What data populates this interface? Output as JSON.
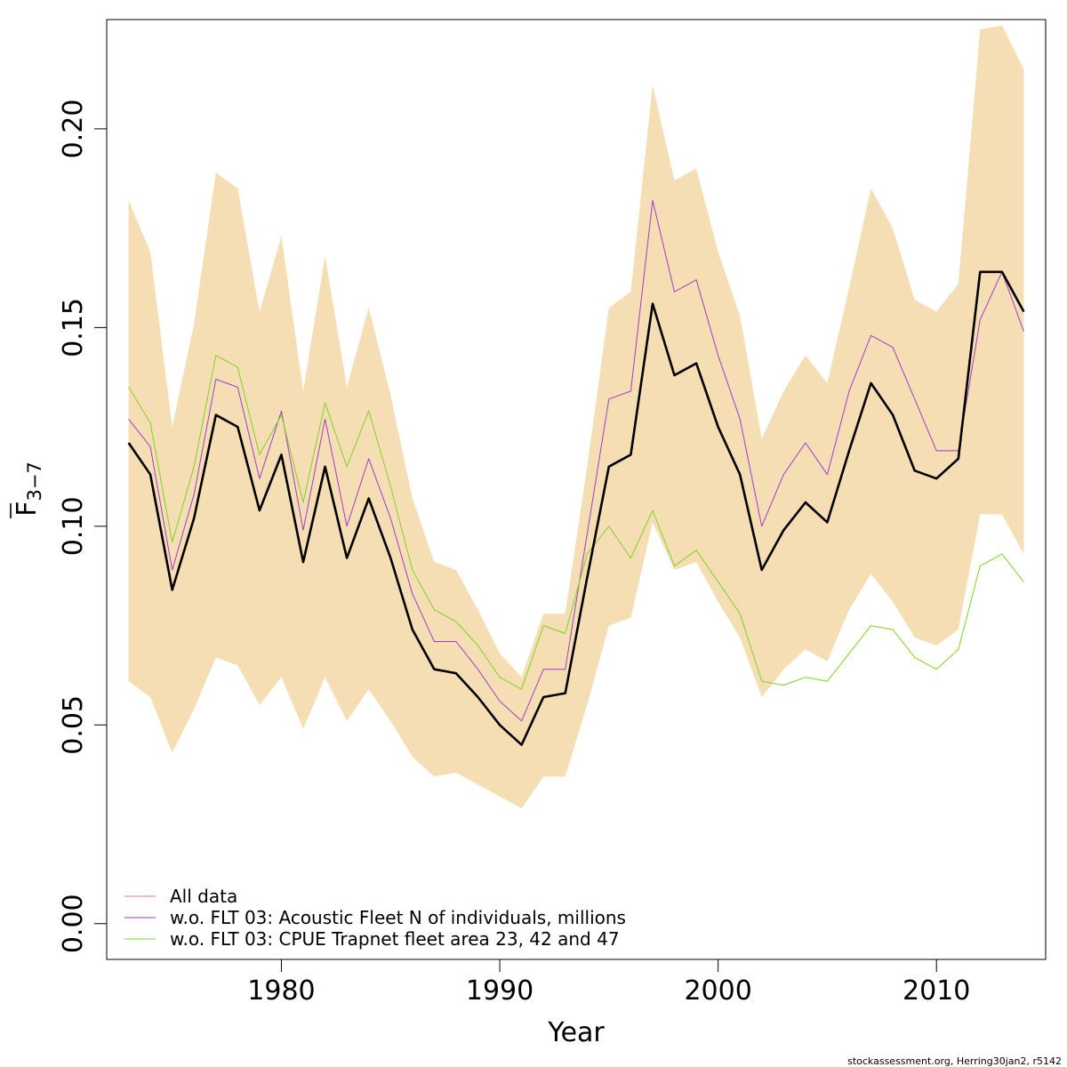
{
  "chart_data": {
    "type": "line",
    "xlabel": "Year",
    "ylabel": "F",
    "ylabel_sub": "3−7",
    "xlim": [
      1972,
      2015
    ],
    "ylim": [
      -0.009,
      0.2275
    ],
    "xticks": [
      1980,
      1990,
      2000,
      2010
    ],
    "xtick_labels": [
      "1980",
      "1990",
      "2000",
      "2010"
    ],
    "yticks": [
      0.0,
      0.05,
      0.1,
      0.15,
      0.2
    ],
    "ytick_labels": [
      "0.00",
      "0.05",
      "0.10",
      "0.15",
      "0.20"
    ],
    "grid": false,
    "legend_position": "bottom-left",
    "band_color": "#f5deb3",
    "x": [
      1973,
      1974,
      1975,
      1976,
      1977,
      1978,
      1979,
      1980,
      1981,
      1982,
      1983,
      1984,
      1985,
      1986,
      1987,
      1988,
      1989,
      1990,
      1991,
      1992,
      1993,
      1994,
      1995,
      1996,
      1997,
      1998,
      1999,
      2000,
      2001,
      2002,
      2003,
      2004,
      2005,
      2006,
      2007,
      2008,
      2009,
      2010,
      2011,
      2012,
      2013,
      2014
    ],
    "band_upper": [
      0.182,
      0.169,
      0.125,
      0.151,
      0.189,
      0.185,
      0.154,
      0.173,
      0.134,
      0.168,
      0.135,
      0.155,
      0.133,
      0.107,
      0.091,
      0.089,
      0.079,
      0.068,
      0.062,
      0.078,
      0.078,
      0.115,
      0.155,
      0.159,
      0.211,
      0.187,
      0.19,
      0.169,
      0.153,
      0.122,
      0.134,
      0.143,
      0.136,
      0.16,
      0.185,
      0.175,
      0.157,
      0.154,
      0.161,
      0.225,
      0.226,
      0.215
    ],
    "band_lower": [
      0.061,
      0.057,
      0.043,
      0.054,
      0.067,
      0.065,
      0.055,
      0.062,
      0.049,
      0.062,
      0.051,
      0.059,
      0.051,
      0.042,
      0.037,
      0.038,
      0.035,
      0.032,
      0.029,
      0.037,
      0.037,
      0.055,
      0.075,
      0.077,
      0.101,
      0.089,
      0.091,
      0.081,
      0.072,
      0.057,
      0.064,
      0.069,
      0.066,
      0.079,
      0.088,
      0.081,
      0.072,
      0.07,
      0.074,
      0.103,
      0.103,
      0.093
    ],
    "series": [
      {
        "name": "All data",
        "color": "#000000",
        "legend_color": "#e07a7a",
        "values": [
          0.121,
          0.113,
          0.084,
          0.102,
          0.128,
          0.125,
          0.104,
          0.118,
          0.091,
          0.115,
          0.092,
          0.107,
          0.092,
          0.074,
          0.064,
          0.063,
          0.057,
          0.05,
          0.045,
          0.057,
          0.058,
          0.087,
          0.115,
          0.118,
          0.156,
          0.138,
          0.141,
          0.125,
          0.113,
          0.089,
          0.099,
          0.106,
          0.101,
          0.119,
          0.136,
          0.128,
          0.114,
          0.112,
          0.117,
          0.164,
          0.164,
          0.154
        ]
      },
      {
        "name": "w.o. FLT 03: Acoustic Fleet   N of individuals, millions",
        "color": "#a03cc8",
        "legend_color": "#a03cc8",
        "values": [
          0.127,
          0.12,
          0.089,
          0.108,
          0.137,
          0.135,
          0.112,
          0.129,
          0.099,
          0.127,
          0.1,
          0.117,
          0.102,
          0.083,
          0.071,
          0.071,
          0.064,
          0.056,
          0.051,
          0.064,
          0.064,
          0.098,
          0.132,
          0.134,
          0.182,
          0.159,
          0.162,
          0.143,
          0.127,
          0.1,
          0.113,
          0.121,
          0.113,
          0.134,
          0.148,
          0.145,
          0.132,
          0.119,
          0.119,
          0.152,
          0.164,
          0.149
        ]
      },
      {
        "name": "w.o. FLT 03: CPUE Trapnet fleet area 23, 42 and 47",
        "color": "#7ed321",
        "legend_color": "#7ed321",
        "values": [
          0.135,
          0.126,
          0.096,
          0.115,
          0.143,
          0.14,
          0.118,
          0.128,
          0.106,
          0.131,
          0.115,
          0.129,
          0.11,
          0.089,
          0.079,
          0.076,
          0.07,
          0.062,
          0.059,
          0.075,
          0.073,
          0.093,
          0.1,
          0.092,
          0.104,
          0.09,
          0.094,
          0.086,
          0.078,
          0.061,
          0.06,
          0.062,
          0.061,
          0.068,
          0.075,
          0.074,
          0.067,
          0.064,
          0.069,
          0.09,
          0.093,
          0.086
        ]
      }
    ]
  },
  "footer": "stockassessment.org, Herring30jan2, r5142"
}
